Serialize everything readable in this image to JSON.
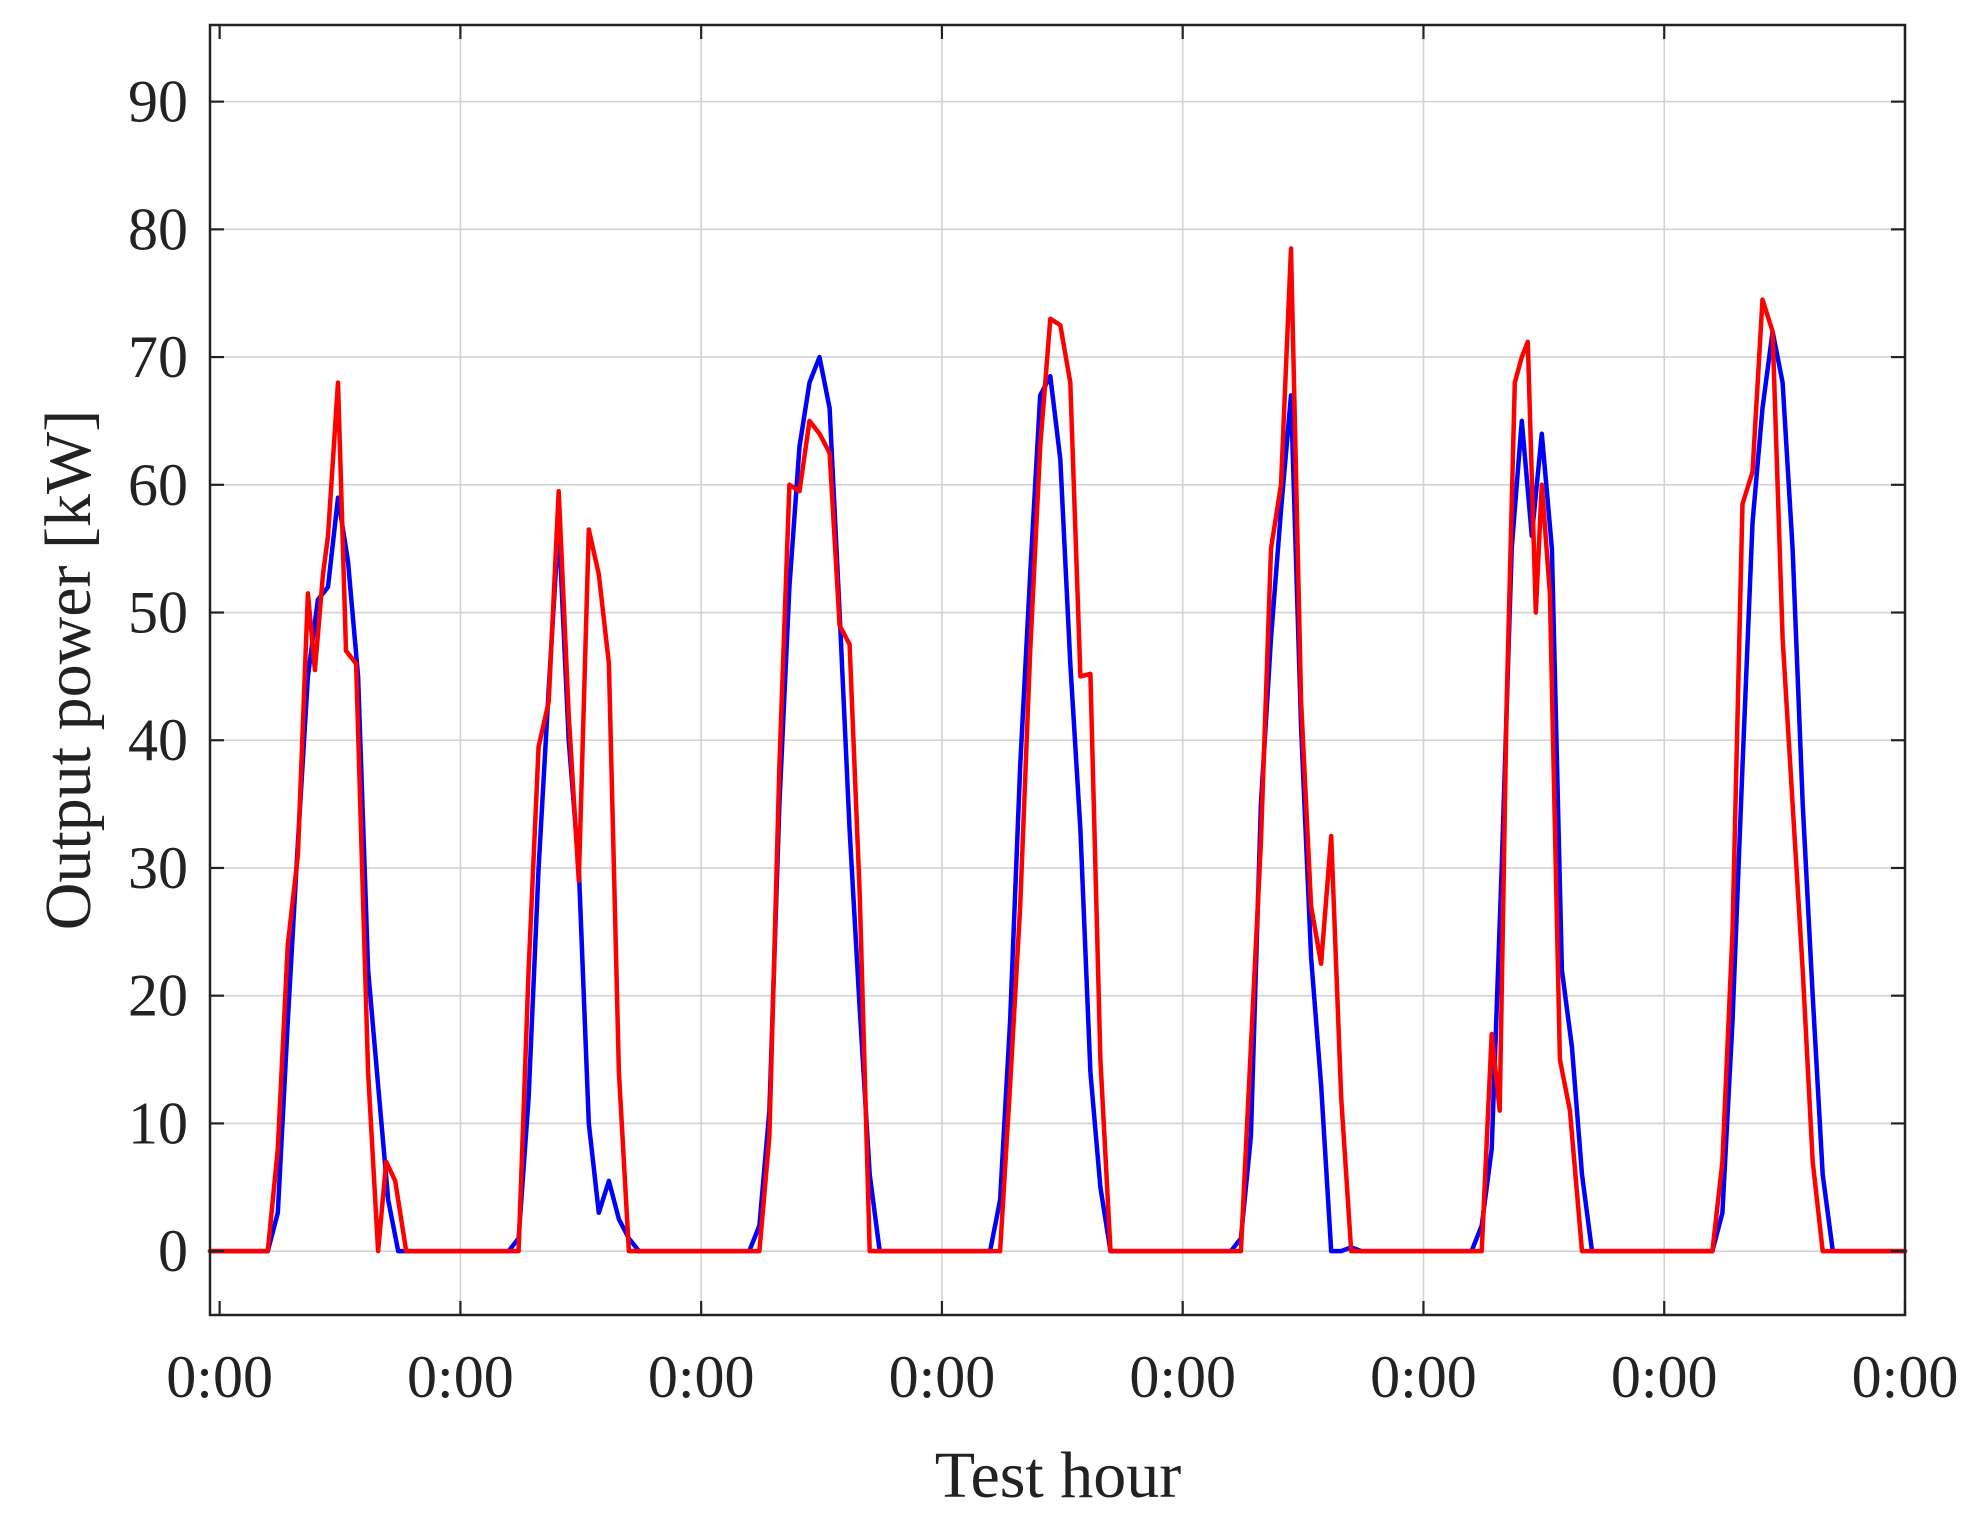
{
  "chart_data": {
    "type": "line",
    "title": "",
    "xlabel": "Test hour",
    "ylabel": "Output power [kW]",
    "x_tick_labels": [
      "0:00",
      "0:00",
      "0:00",
      "0:00",
      "0:00",
      "0:00",
      "0:00",
      "0:00"
    ],
    "y_ticks": [
      0,
      10,
      20,
      30,
      40,
      50,
      60,
      70,
      80,
      90
    ],
    "xlim": [
      -0.96,
      168
    ],
    "ylim": [
      -5,
      96
    ],
    "grid": true,
    "legend": "none",
    "series": [
      {
        "color": "#0000ff",
        "points": [
          [
            -0.96,
            0
          ],
          [
            4.8,
            0
          ],
          [
            5.8,
            3
          ],
          [
            6.8,
            18
          ],
          [
            7.8,
            32
          ],
          [
            8.8,
            45
          ],
          [
            9.8,
            51
          ],
          [
            10.8,
            52
          ],
          [
            11.8,
            59
          ],
          [
            12.8,
            54
          ],
          [
            13.8,
            45
          ],
          [
            14.8,
            22
          ],
          [
            15.8,
            13
          ],
          [
            16.8,
            4
          ],
          [
            17.8,
            0
          ],
          [
            19.8,
            0
          ],
          [
            28.8,
            0
          ],
          [
            29.8,
            1
          ],
          [
            30.8,
            12
          ],
          [
            31.8,
            30
          ],
          [
            32.8,
            44
          ],
          [
            33.8,
            57
          ],
          [
            34.8,
            40
          ],
          [
            35.8,
            30
          ],
          [
            36.8,
            10
          ],
          [
            37.8,
            3
          ],
          [
            38.8,
            5.5
          ],
          [
            39.8,
            2.5
          ],
          [
            40.8,
            1
          ],
          [
            41.8,
            0
          ],
          [
            52.8,
            0
          ],
          [
            53.8,
            2
          ],
          [
            54.8,
            11
          ],
          [
            55.8,
            35
          ],
          [
            56.8,
            52
          ],
          [
            57.8,
            63
          ],
          [
            58.8,
            68
          ],
          [
            59.8,
            70
          ],
          [
            60.8,
            66
          ],
          [
            61.8,
            50
          ],
          [
            62.8,
            33
          ],
          [
            63.8,
            19
          ],
          [
            64.8,
            6
          ],
          [
            65.8,
            0
          ],
          [
            76.8,
            0
          ],
          [
            77.8,
            4
          ],
          [
            78.8,
            18
          ],
          [
            79.8,
            38
          ],
          [
            80.8,
            53
          ],
          [
            81.8,
            67
          ],
          [
            82.8,
            68.5
          ],
          [
            83.8,
            62
          ],
          [
            84.8,
            46
          ],
          [
            85.8,
            33
          ],
          [
            86.8,
            14
          ],
          [
            87.8,
            5
          ],
          [
            88.8,
            0
          ],
          [
            100.8,
            0
          ],
          [
            101.8,
            1
          ],
          [
            102.8,
            9
          ],
          [
            103.8,
            35
          ],
          [
            104.8,
            48
          ],
          [
            105.8,
            58
          ],
          [
            106.8,
            67
          ],
          [
            107.8,
            41
          ],
          [
            108.8,
            23
          ],
          [
            109.8,
            13
          ],
          [
            110.8,
            0
          ],
          [
            111.8,
            0
          ],
          [
            112.8,
            0.3
          ],
          [
            113.8,
            0
          ],
          [
            124.8,
            0
          ],
          [
            125.8,
            2
          ],
          [
            126.8,
            8
          ],
          [
            127.8,
            30
          ],
          [
            128.8,
            55
          ],
          [
            129.8,
            65
          ],
          [
            130.8,
            56
          ],
          [
            131.8,
            64
          ],
          [
            132.8,
            55
          ],
          [
            133.8,
            22
          ],
          [
            134.8,
            16
          ],
          [
            135.8,
            6
          ],
          [
            136.8,
            0
          ],
          [
            148.8,
            0
          ],
          [
            149.8,
            3
          ],
          [
            150.8,
            18
          ],
          [
            151.8,
            38
          ],
          [
            152.8,
            57
          ],
          [
            153.8,
            66
          ],
          [
            154.8,
            72
          ],
          [
            155.8,
            68
          ],
          [
            156.8,
            55
          ],
          [
            157.8,
            35
          ],
          [
            158.8,
            20
          ],
          [
            159.8,
            6
          ],
          [
            160.8,
            0
          ],
          [
            168,
            0
          ]
        ]
      },
      {
        "color": "#ff0000",
        "points": [
          [
            -0.96,
            0
          ],
          [
            4.8,
            0
          ],
          [
            5.8,
            8
          ],
          [
            6.8,
            24
          ],
          [
            7.8,
            31
          ],
          [
            8.8,
            51.5
          ],
          [
            9.5,
            45.5
          ],
          [
            10.3,
            53
          ],
          [
            10.8,
            56
          ],
          [
            11.8,
            68
          ],
          [
            12.6,
            47
          ],
          [
            13.6,
            46
          ],
          [
            14.8,
            14
          ],
          [
            15.8,
            0
          ],
          [
            16.6,
            7
          ],
          [
            17.5,
            5.5
          ],
          [
            18.6,
            0
          ],
          [
            19.8,
            0
          ],
          [
            29.8,
            0
          ],
          [
            30.8,
            22
          ],
          [
            31.8,
            39.5
          ],
          [
            32.8,
            43
          ],
          [
            33.8,
            59.5
          ],
          [
            34.8,
            42
          ],
          [
            35.8,
            29
          ],
          [
            36.8,
            56.5
          ],
          [
            37.8,
            53
          ],
          [
            38.8,
            46
          ],
          [
            39.8,
            14
          ],
          [
            40.8,
            0
          ],
          [
            41.8,
            0
          ],
          [
            53.8,
            0
          ],
          [
            54.8,
            9
          ],
          [
            55.8,
            38
          ],
          [
            56.8,
            60
          ],
          [
            57.8,
            59.5
          ],
          [
            58.8,
            65
          ],
          [
            59.8,
            64
          ],
          [
            60.8,
            62.5
          ],
          [
            61.8,
            49
          ],
          [
            62.8,
            47.5
          ],
          [
            63.8,
            28
          ],
          [
            64.8,
            0
          ],
          [
            65.8,
            0
          ],
          [
            77.8,
            0
          ],
          [
            78.8,
            13
          ],
          [
            79.8,
            27
          ],
          [
            80.8,
            47
          ],
          [
            81.8,
            63
          ],
          [
            82.8,
            73
          ],
          [
            83.8,
            72.5
          ],
          [
            84.8,
            68
          ],
          [
            85.8,
            45
          ],
          [
            86.8,
            45.2
          ],
          [
            87.8,
            15
          ],
          [
            88.8,
            0
          ],
          [
            101.8,
            0
          ],
          [
            102.8,
            16
          ],
          [
            103.8,
            32
          ],
          [
            104.8,
            55
          ],
          [
            105.8,
            60
          ],
          [
            106.8,
            78.5
          ],
          [
            107.8,
            43
          ],
          [
            108.8,
            27
          ],
          [
            109.8,
            22.5
          ],
          [
            110.8,
            32.5
          ],
          [
            111.8,
            12
          ],
          [
            112.8,
            0
          ],
          [
            113.8,
            0
          ],
          [
            124.8,
            0
          ],
          [
            125.8,
            0
          ],
          [
            126.8,
            17
          ],
          [
            127.6,
            11
          ],
          [
            128.3,
            43
          ],
          [
            129.1,
            68
          ],
          [
            129.8,
            70
          ],
          [
            130.4,
            71.2
          ],
          [
            131.2,
            50
          ],
          [
            131.8,
            60
          ],
          [
            132.6,
            51.5
          ],
          [
            133.6,
            15
          ],
          [
            134.6,
            11
          ],
          [
            135.8,
            0
          ],
          [
            136.8,
            0
          ],
          [
            148.8,
            0
          ],
          [
            149.8,
            7
          ],
          [
            150.8,
            25
          ],
          [
            151.8,
            58.5
          ],
          [
            152.8,
            61
          ],
          [
            153.8,
            74.5
          ],
          [
            154.8,
            72
          ],
          [
            155.8,
            48
          ],
          [
            156.8,
            35
          ],
          [
            157.8,
            22
          ],
          [
            158.8,
            7
          ],
          [
            159.8,
            0
          ],
          [
            168,
            0
          ]
        ]
      }
    ]
  }
}
